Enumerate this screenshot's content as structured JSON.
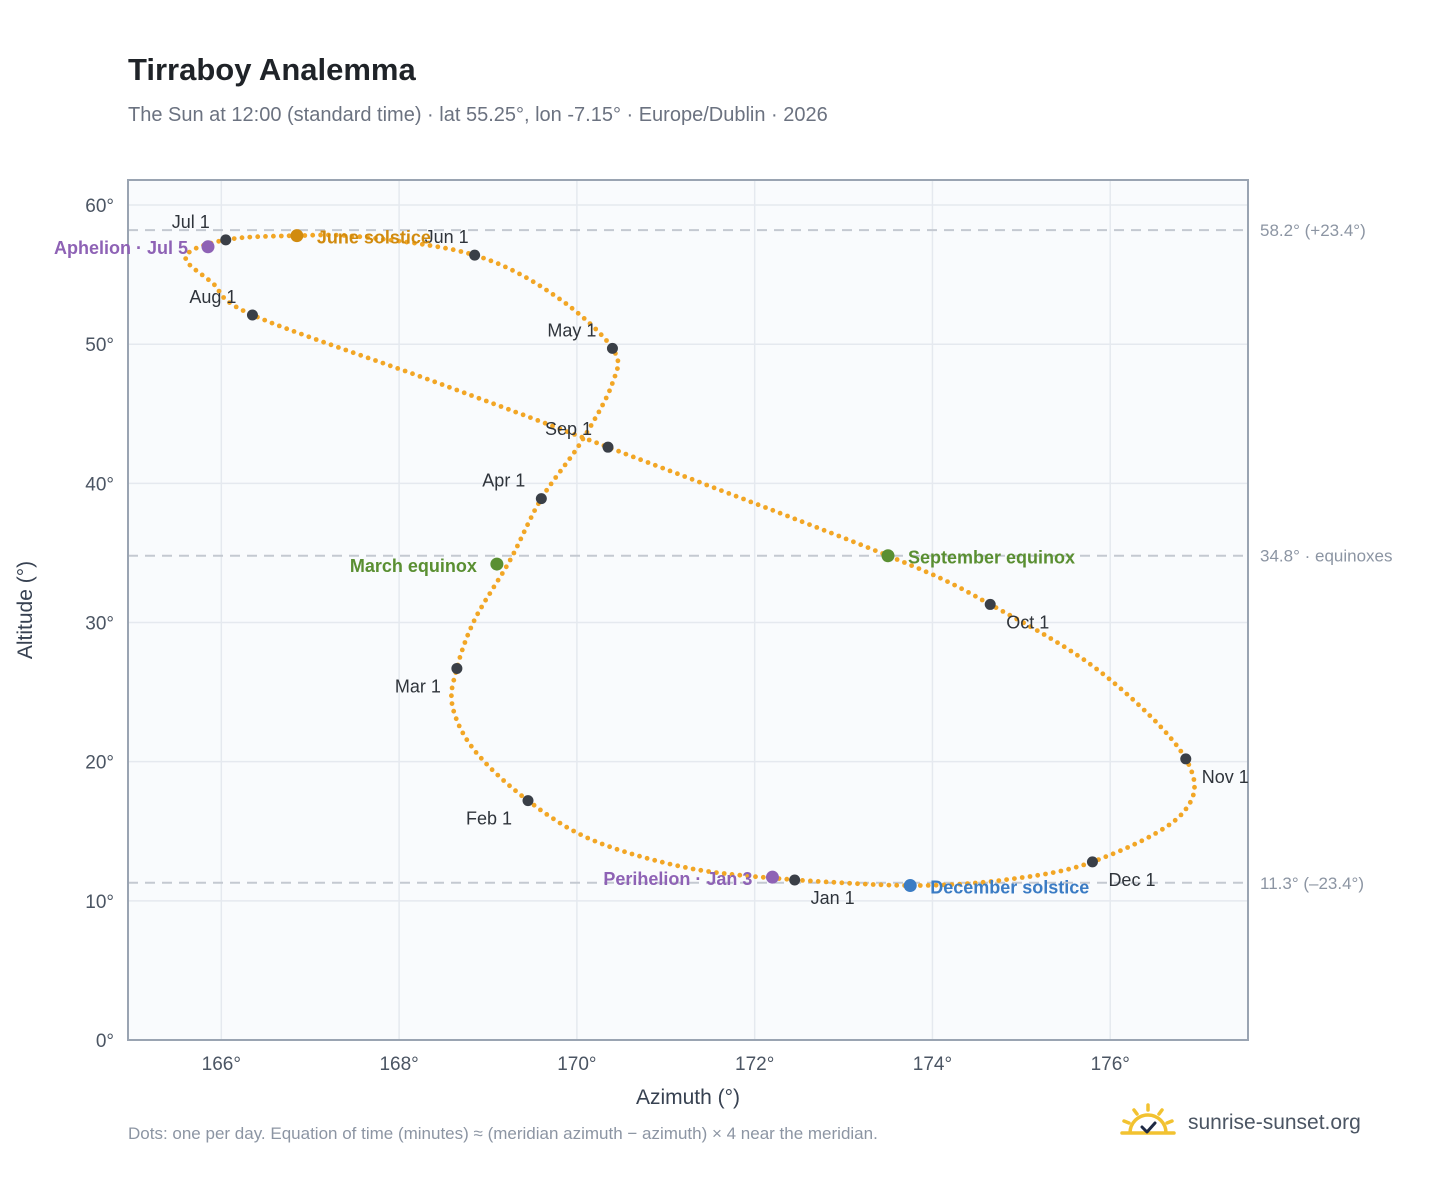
{
  "header": {
    "title": "Tirraboy Analemma",
    "subtitle": "The Sun at 12:00 (standard time) · lat 55.25°, lon -7.15° · Europe/Dublin · 2026"
  },
  "footer": {
    "note": "Dots: one per day. Equation of time (minutes) ≈ (meridian azimuth − azimuth) × 4 near the meridian.",
    "brand": "sunrise-sunset.org"
  },
  "colors": {
    "path": "#f2a625",
    "month_marker": "#3a3f47",
    "solstice_june": "#d18b0f",
    "solstice_december": "#3b7cc4",
    "equinox": "#5a8f32",
    "apsis": "#8e62b5",
    "reference_line": "#c4c9d1",
    "plot_bg": "#f9fbfd",
    "grid": "#e5e9ef",
    "frame": "#9aa4b2"
  },
  "chart_data": {
    "type": "scatter",
    "xlabel": "Azimuth (°)",
    "ylabel": "Altitude (°)",
    "xlim": [
      164.95,
      177.55
    ],
    "ylim": [
      0,
      61.8
    ],
    "x_ticks": [
      166,
      168,
      170,
      172,
      174,
      176
    ],
    "x_tick_labels": [
      "166°",
      "168°",
      "170°",
      "172°",
      "174°",
      "176°"
    ],
    "y_ticks": [
      0,
      10,
      20,
      30,
      40,
      50,
      60
    ],
    "y_tick_labels": [
      "0°",
      "10°",
      "20°",
      "30°",
      "40°",
      "50°",
      "60°"
    ],
    "grid": true,
    "reference_lines": [
      {
        "y": 58.2,
        "label": "58.2° (+23.4°)"
      },
      {
        "y": 34.8,
        "label": "34.8° · equinoxes"
      },
      {
        "y": 11.3,
        "label": "11.3° (–23.4°)"
      }
    ],
    "month_markers": [
      {
        "label": "Jan 1",
        "x": 172.45,
        "y": 11.5
      },
      {
        "label": "Feb 1",
        "x": 169.45,
        "y": 17.2
      },
      {
        "label": "Mar 1",
        "x": 168.65,
        "y": 26.7
      },
      {
        "label": "Apr 1",
        "x": 169.6,
        "y": 38.9
      },
      {
        "label": "May 1",
        "x": 170.4,
        "y": 49.7
      },
      {
        "label": "Jun 1",
        "x": 168.85,
        "y": 56.4
      },
      {
        "label": "Jul 1",
        "x": 166.05,
        "y": 57.5
      },
      {
        "label": "Aug 1",
        "x": 166.35,
        "y": 52.1
      },
      {
        "label": "Sep 1",
        "x": 170.35,
        "y": 42.6
      },
      {
        "label": "Oct 1",
        "x": 174.65,
        "y": 31.3
      },
      {
        "label": "Nov 1",
        "x": 176.85,
        "y": 20.2
      },
      {
        "label": "Dec 1",
        "x": 175.8,
        "y": 12.8
      }
    ],
    "events": [
      {
        "label": "June solstice",
        "x": 166.85,
        "y": 57.8,
        "kind": "solstice_june"
      },
      {
        "label": "December solstice",
        "x": 173.75,
        "y": 11.1,
        "kind": "solstice_december"
      },
      {
        "label": "March equinox",
        "x": 169.1,
        "y": 34.2,
        "kind": "equinox"
      },
      {
        "label": "September equinox",
        "x": 173.5,
        "y": 34.8,
        "kind": "equinox"
      },
      {
        "label": "Aphelion · Jul 5",
        "x": 165.85,
        "y": 57.0,
        "kind": "apsis"
      },
      {
        "label": "Perihelion · Jan 3",
        "x": 172.2,
        "y": 11.7,
        "kind": "apsis"
      }
    ],
    "daily_path": {
      "description": "one dot per day, traced through the monthly control points",
      "control_points": [
        [
          172.45,
          11.5
        ],
        [
          171.3,
          12.3
        ],
        [
          170.2,
          14.3
        ],
        [
          169.45,
          17.2
        ],
        [
          168.85,
          20.8
        ],
        [
          168.6,
          24.0
        ],
        [
          168.65,
          26.7
        ],
        [
          168.85,
          30.2
        ],
        [
          169.25,
          34.5
        ],
        [
          169.6,
          38.9
        ],
        [
          170.05,
          43.0
        ],
        [
          170.4,
          47.2
        ],
        [
          170.4,
          49.7
        ],
        [
          169.75,
          53.5
        ],
        [
          168.85,
          56.4
        ],
        [
          167.6,
          57.7
        ],
        [
          166.85,
          57.8
        ],
        [
          166.05,
          57.5
        ],
        [
          165.6,
          56.3
        ],
        [
          165.9,
          54.4
        ],
        [
          166.35,
          52.1
        ],
        [
          168.4,
          47.3
        ],
        [
          170.35,
          42.6
        ],
        [
          173.5,
          34.8
        ],
        [
          174.65,
          31.3
        ],
        [
          175.9,
          26.4
        ],
        [
          176.85,
          20.2
        ],
        [
          176.8,
          16.2
        ],
        [
          175.8,
          12.8
        ],
        [
          174.8,
          11.5
        ],
        [
          173.75,
          11.1
        ],
        [
          172.45,
          11.5
        ]
      ]
    }
  }
}
